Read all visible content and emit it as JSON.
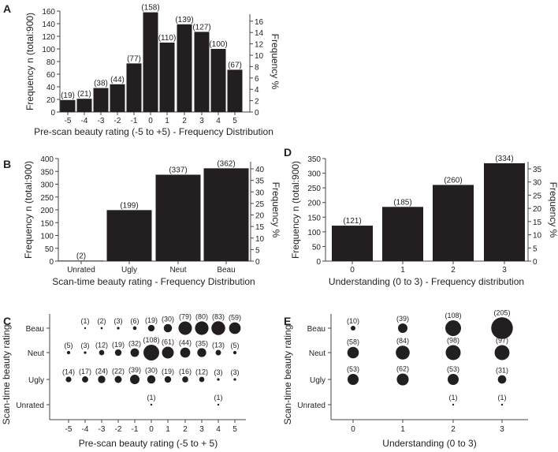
{
  "chart_data": [
    {
      "id": "A",
      "panel_label": "A",
      "type": "bar",
      "title": "",
      "xlabel": "Pre-scan beauty rating (-5 to +5) - Frequency Distribution",
      "ylabel": "Frequency n (total:900)",
      "y2label": "Frequency %",
      "categories": [
        "-5",
        "-4",
        "-3",
        "-2",
        "-1",
        "0",
        "1",
        "2",
        "3",
        "4",
        "5"
      ],
      "values": [
        19,
        21,
        38,
        44,
        77,
        158,
        110,
        139,
        127,
        100,
        67
      ],
      "data_labels": [
        "(19)",
        "(21)",
        "(38)",
        "(44)",
        "(77)",
        "(158)",
        "(110)",
        "(139)",
        "(127)",
        "(100)",
        "(67)"
      ],
      "ylim": [
        0,
        160
      ],
      "yticks": [
        "0",
        "20",
        "40",
        "60",
        "80",
        "100",
        "120",
        "140",
        "160"
      ],
      "y2ticks": [
        "0",
        "2",
        "4",
        "6",
        "8",
        "10",
        "12",
        "14",
        "16"
      ],
      "total": 900
    },
    {
      "id": "B",
      "panel_label": "B",
      "type": "bar",
      "title": "",
      "xlabel": "Scan-time beauty rating - Frequency Distribution",
      "ylabel": "Frequency n (total:900)",
      "y2label": "Frequency %",
      "categories": [
        "Unrated",
        "Ugly",
        "Neut",
        "Beau"
      ],
      "values": [
        2,
        199,
        337,
        362
      ],
      "data_labels": [
        "(2)",
        "(199)",
        "(337)",
        "(362)"
      ],
      "ylim": [
        0,
        400
      ],
      "yticks": [
        "0",
        "50",
        "100",
        "150",
        "200",
        "250",
        "300",
        "350",
        "400"
      ],
      "y2ticks": [
        "0",
        "5",
        "10",
        "15",
        "20",
        "25",
        "30",
        "35",
        "40"
      ],
      "total": 900
    },
    {
      "id": "D",
      "panel_label": "D",
      "type": "bar",
      "title": "",
      "xlabel": "Understanding (0 to 3) - Frequency distribution",
      "ylabel": "Frequency n (total:900)",
      "y2label": "Frequency %",
      "categories": [
        "0",
        "1",
        "2",
        "3"
      ],
      "values": [
        121,
        185,
        260,
        334
      ],
      "data_labels": [
        "(121)",
        "(185)",
        "(260)",
        "(334)"
      ],
      "ylim": [
        0,
        350
      ],
      "yticks": [
        "0",
        "50",
        "100",
        "150",
        "200",
        "250",
        "300",
        "350"
      ],
      "y2ticks": [
        "0",
        "5",
        "10",
        "15",
        "20",
        "25",
        "30",
        "35"
      ],
      "total": 900
    },
    {
      "id": "C",
      "panel_label": "C",
      "type": "scatter",
      "title": "",
      "xlabel": "Pre-scan beauty rating (-5 to + 5)",
      "ylabel": "Scan-time beauty rating",
      "x": [
        "-5",
        "-4",
        "-3",
        "-2",
        "-1",
        "0",
        "1",
        "2",
        "3",
        "4",
        "5"
      ],
      "rows": [
        "Beau",
        "Neut",
        "Ugly",
        "Unrated"
      ],
      "counts": [
        [
          null,
          1,
          2,
          3,
          6,
          19,
          30,
          79,
          80,
          83,
          59
        ],
        [
          5,
          3,
          12,
          19,
          32,
          108,
          61,
          44,
          35,
          13,
          5
        ],
        [
          14,
          17,
          24,
          22,
          39,
          30,
          19,
          16,
          12,
          3,
          3
        ],
        [
          null,
          null,
          null,
          null,
          null,
          1,
          null,
          null,
          null,
          1,
          null
        ]
      ]
    },
    {
      "id": "E",
      "panel_label": "E",
      "type": "scatter",
      "title": "",
      "xlabel": "Understanding (0 to 3)",
      "ylabel": "Scan-time beauty rating",
      "x": [
        "0",
        "1",
        "2",
        "3"
      ],
      "rows": [
        "Beau",
        "Neut",
        "Ugly",
        "Unrated"
      ],
      "counts": [
        [
          10,
          39,
          108,
          205
        ],
        [
          58,
          84,
          98,
          97
        ],
        [
          53,
          62,
          53,
          31
        ],
        [
          null,
          null,
          1,
          1
        ]
      ]
    }
  ]
}
